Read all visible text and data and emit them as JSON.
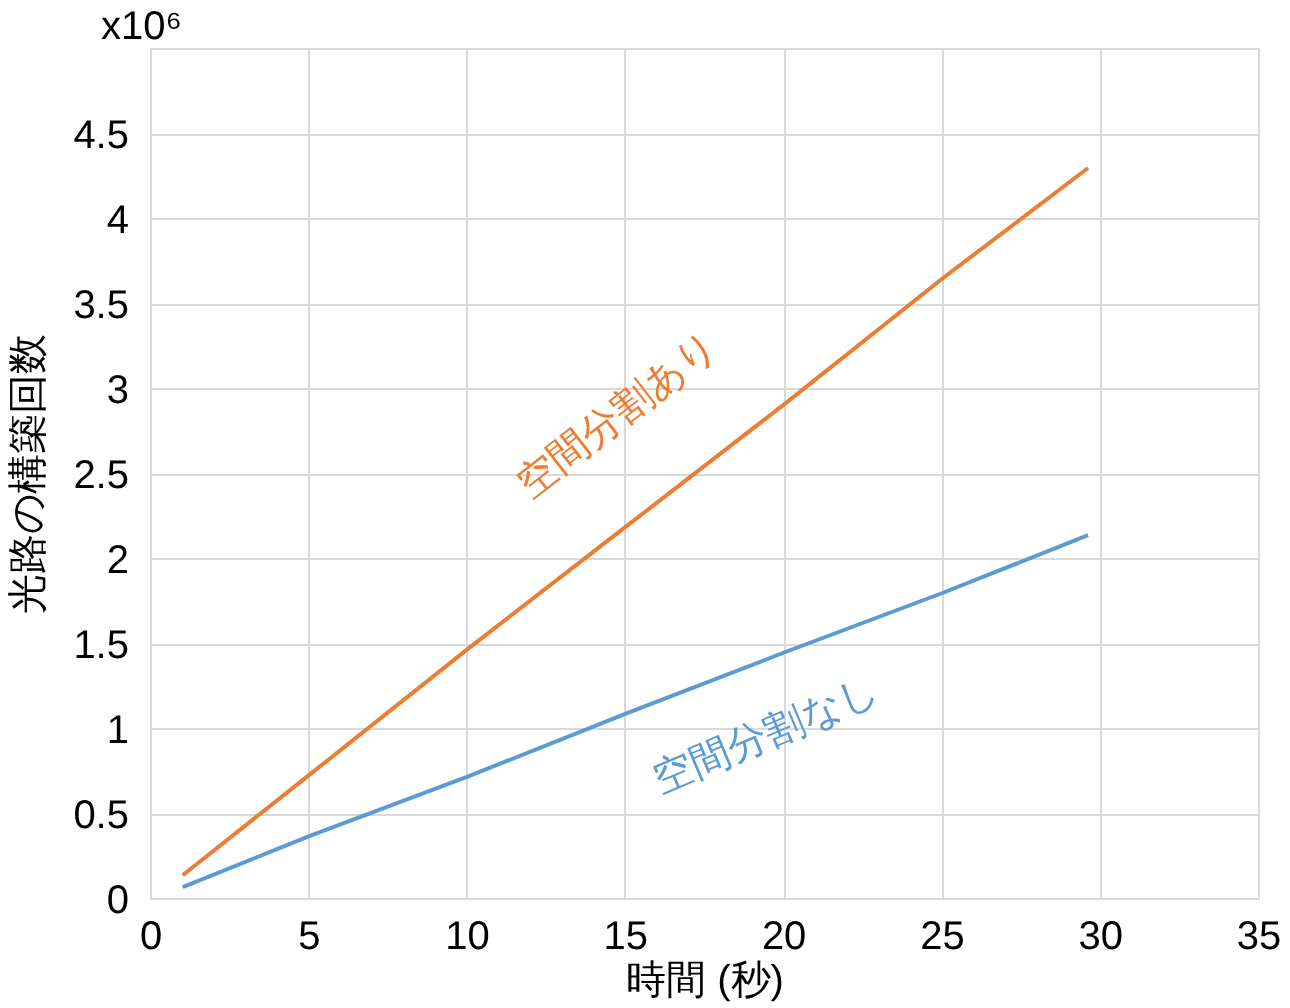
{
  "chart_data": {
    "type": "line",
    "xlabel": "時間 (秒)",
    "ylabel": "光路の構築回数",
    "x": [
      1,
      5,
      10,
      15,
      20,
      25,
      29.6
    ],
    "series": [
      {
        "name": "空間分割あり",
        "color": "#ed7d31",
        "values": [
          0.14,
          0.73,
          1.47,
          2.19,
          2.91,
          3.65,
          4.3
        ]
      },
      {
        "name": "空間分割なし",
        "color": "#5b9bd5",
        "values": [
          0.07,
          0.37,
          0.72,
          1.09,
          1.45,
          1.8,
          2.14
        ]
      }
    ],
    "xlim": [
      0,
      35
    ],
    "xticks": [
      0,
      5,
      10,
      15,
      20,
      25,
      30,
      35
    ],
    "ylim": [
      0,
      5
    ],
    "yticks": [
      0,
      0.5,
      1,
      1.5,
      2,
      2.5,
      3,
      3.5,
      4,
      4.5,
      {
        "value": 5,
        "label": null
      }
    ],
    "annotations": [
      "x10⁶"
    ],
    "grid": true,
    "marker": "none",
    "line_style": "solid"
  }
}
